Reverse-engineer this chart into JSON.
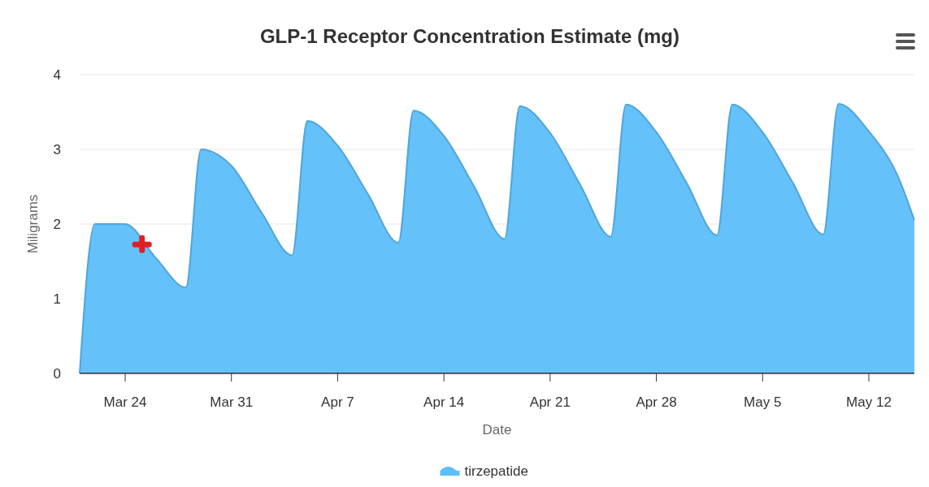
{
  "chart_data": {
    "type": "area",
    "title": "GLP-1 Receptor Concentration Estimate (mg)",
    "xlabel": "Date",
    "ylabel": "Miligrams",
    "xlim": [
      "--03-21",
      "--05-15"
    ],
    "xticks": [
      {
        "value": "--03-24",
        "label": "Mar 24"
      },
      {
        "value": "--03-31",
        "label": "Mar 31"
      },
      {
        "value": "--04-07",
        "label": "Apr 7"
      },
      {
        "value": "--04-14",
        "label": "Apr 14"
      },
      {
        "value": "--04-21",
        "label": "Apr 21"
      },
      {
        "value": "--04-28",
        "label": "Apr 28"
      },
      {
        "value": "--05-05",
        "label": "May 5"
      },
      {
        "value": "--05-12",
        "label": "May 12"
      }
    ],
    "ylim": [
      0,
      4
    ],
    "yticks": [
      0,
      1,
      2,
      3,
      4
    ],
    "grid": "y",
    "legend": "bottom",
    "series": [
      {
        "name": "tirzepatide",
        "color": "#5cbefa",
        "x": [
          "--03-21",
          "--03-22",
          "--03-24",
          "--03-26",
          "--03-28",
          "--03-29",
          "--03-31",
          "--04-02",
          "--04-04",
          "--04-05",
          "--04-07",
          "--04-09",
          "--04-11",
          "--04-12",
          "--04-14",
          "--04-16",
          "--04-18",
          "--04-19",
          "--04-21",
          "--04-23",
          "--04-25",
          "--04-26",
          "--04-28",
          "--04-30",
          "--05-02",
          "--05-03",
          "--05-05",
          "--05-07",
          "--05-09",
          "--05-10",
          "--05-12",
          "--05-14",
          "--05-15"
        ],
        "values": [
          0,
          2,
          2,
          1.55,
          1.15,
          3,
          2.78,
          2.15,
          1.58,
          3.38,
          3.05,
          2.4,
          1.75,
          3.52,
          3.18,
          2.5,
          1.8,
          3.58,
          3.22,
          2.52,
          1.83,
          3.6,
          3.23,
          2.55,
          1.85,
          3.6,
          3.23,
          2.55,
          1.86,
          3.61,
          3.24,
          2.6,
          2.05
        ]
      }
    ]
  }
}
